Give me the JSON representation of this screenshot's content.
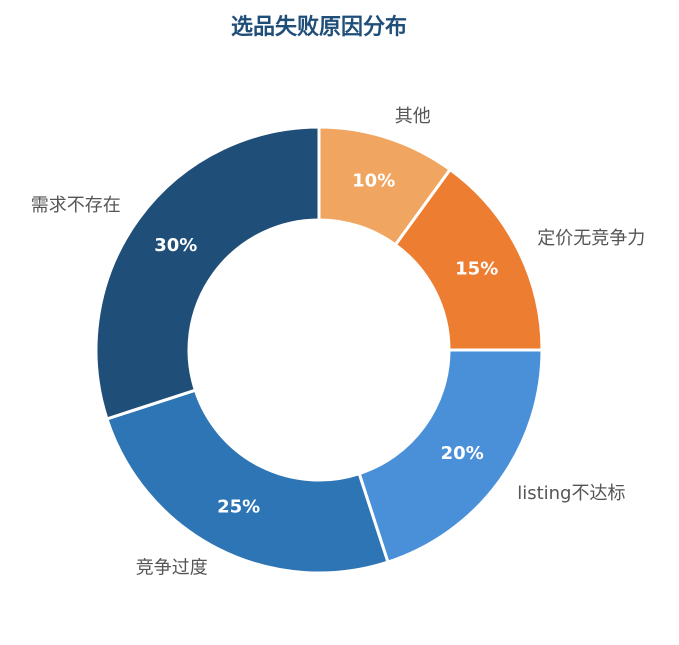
{
  "chart_data": {
    "type": "donut",
    "title": "选品失败原因分布",
    "categories": [
      "其他",
      "定价无竞争力",
      "listing不达标",
      "竞争过度",
      "需求不存在"
    ],
    "values": [
      10,
      15,
      20,
      25,
      30
    ],
    "value_labels": [
      "10%",
      "15%",
      "20%",
      "25%",
      "30%"
    ],
    "colors": [
      "#f0a660",
      "#ed7d31",
      "#4a90d9",
      "#2e75b6",
      "#1f4e79"
    ]
  }
}
